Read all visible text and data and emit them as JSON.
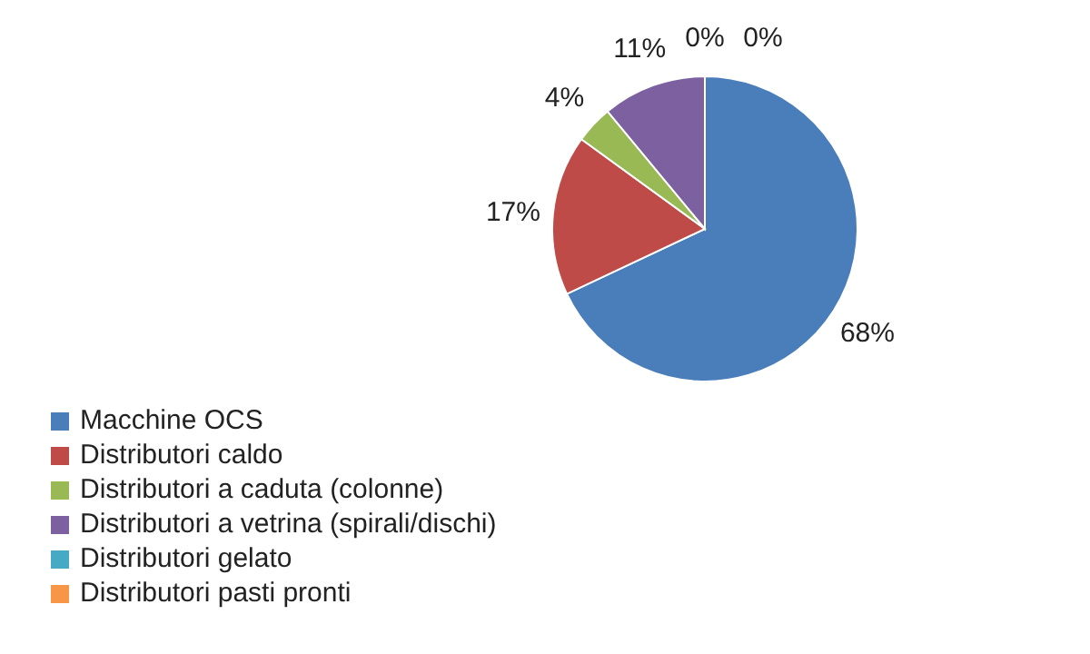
{
  "chart_data": {
    "type": "pie",
    "categories": [
      "Macchine OCS",
      "Distributori caldo",
      "Distributori a caduta (colonne)",
      "Distributori a vetrina (spirali/dischi)",
      "Distributori gelato",
      "Distributori pasti pronti"
    ],
    "values": [
      68,
      17,
      4,
      11,
      0,
      0
    ],
    "colors": [
      "#4a7ebb",
      "#be4b48",
      "#98b954",
      "#7d60a0",
      "#46aac5",
      "#f79646"
    ],
    "value_labels": [
      "68%",
      "17%",
      "4%",
      "11%",
      "0%",
      "0%"
    ],
    "legend": "bottom left"
  }
}
